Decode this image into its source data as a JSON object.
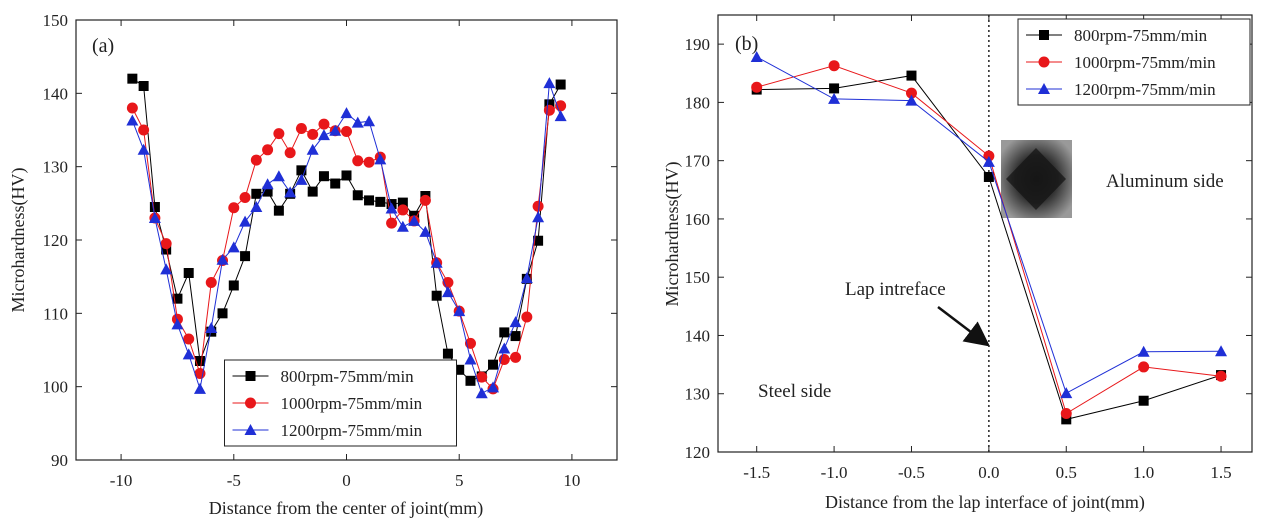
{
  "chart_data": [
    {
      "type": "line",
      "panel_label": "(a)",
      "x_label": "Distance from the center of joint(mm)",
      "y_label": "Microhardness(HV)",
      "x": [
        -9.5,
        -9,
        -8.5,
        -8,
        -7.5,
        -7,
        -6.5,
        -6,
        -5.5,
        -5,
        -4.5,
        -4,
        -3.5,
        -3,
        -2.5,
        -2,
        -1.5,
        -1,
        -0.5,
        0,
        0.5,
        1,
        1.5,
        2,
        2.5,
        3,
        3.5,
        4,
        4.5,
        5,
        5.5,
        6,
        6.5,
        7,
        7.5,
        8,
        8.5,
        9,
        9.5
      ],
      "series": [
        {
          "name": "800rpm-75mm/min",
          "color": "#000000",
          "marker": "square",
          "values": [
            142,
            141,
            124.5,
            118.7,
            112,
            115.5,
            103.5,
            107.5,
            110,
            113.8,
            117.8,
            126.3,
            126.6,
            124,
            126.3,
            129.5,
            126.6,
            128.7,
            127.7,
            128.8,
            126.1,
            125.4,
            125.2,
            124.9,
            125.1,
            123.3,
            126,
            112.4,
            104.5,
            102.3,
            100.8,
            101.4,
            103,
            107.4,
            106.9,
            114.7,
            119.9,
            138.5,
            141.2
          ]
        },
        {
          "name": "1000rpm-75mm/min",
          "color": "#e8171a",
          "marker": "circle",
          "values": [
            138,
            135,
            123,
            119.5,
            109.2,
            106.5,
            101.8,
            114.2,
            117.2,
            124.4,
            125.8,
            130.9,
            132.3,
            134.5,
            131.9,
            135.2,
            134.4,
            135.8,
            134.9,
            134.8,
            130.8,
            130.6,
            131.3,
            122.3,
            124.1,
            122.6,
            125.4,
            116.9,
            114.2,
            110.3,
            105.9,
            101.3,
            99.7,
            103.7,
            104,
            109.5,
            124.6,
            137.7,
            138.3
          ]
        },
        {
          "name": "1200rpm-75mm/min",
          "color": "#1f2fd6",
          "marker": "triangle",
          "values": [
            136.3,
            132.3,
            123,
            116,
            108.5,
            104.4,
            99.7,
            108,
            117.3,
            119,
            122.5,
            124.5,
            127.6,
            128.7,
            126.5,
            128.2,
            132.3,
            134.3,
            134.9,
            137.3,
            136,
            136.2,
            131,
            124.3,
            121.8,
            122.6,
            121.1,
            116.9,
            112.9,
            110.3,
            103.7,
            99.1,
            99.9,
            105.2,
            108.8,
            114.8,
            123.1,
            141.4,
            136.9
          ]
        }
      ],
      "xlim": [
        -12,
        12
      ],
      "xticks": [
        -10,
        -5,
        0,
        5,
        10
      ],
      "ylim": [
        90,
        150
      ],
      "yticks": [
        90,
        100,
        110,
        120,
        130,
        140,
        150
      ],
      "legend": "lower center"
    },
    {
      "type": "line",
      "panel_label": "(b)",
      "x_label": "Distance from the lap interface of joint(mm)",
      "y_label": "Microhardness(HV)",
      "x": [
        -1.5,
        -1,
        -0.5,
        0,
        0.5,
        1,
        1.5
      ],
      "series": [
        {
          "name": "800rpm-75mm/min",
          "color": "#000000",
          "marker": "square",
          "values": [
            182.2,
            182.4,
            184.6,
            167.2,
            125.6,
            128.8,
            133.2
          ]
        },
        {
          "name": "1000rpm-75mm/min",
          "color": "#e8171a",
          "marker": "circle",
          "values": [
            182.6,
            186.3,
            181.6,
            170.8,
            126.6,
            134.6,
            133
          ]
        },
        {
          "name": "1200rpm-75mm/min",
          "color": "#1f2fd6",
          "marker": "triangle",
          "values": [
            187.8,
            180.6,
            180.3,
            169.8,
            130.1,
            137.2,
            137.3
          ]
        }
      ],
      "xlim": [
        -1.75,
        1.7
      ],
      "xticks": [
        -1.5,
        {
          "value": -1,
          "label": "-1.0"
        },
        -0.5,
        {
          "value": 0,
          "label": "0.0"
        },
        0.5,
        {
          "value": 1,
          "label": "1.0"
        },
        1.5
      ],
      "ylim": [
        120,
        195
      ],
      "yticks": [
        120,
        130,
        140,
        150,
        160,
        170,
        180,
        190
      ],
      "vline": 0,
      "annotations": [
        "Lap intreface",
        "Aluminum side",
        "Steel side"
      ],
      "legend": "upper right"
    }
  ]
}
